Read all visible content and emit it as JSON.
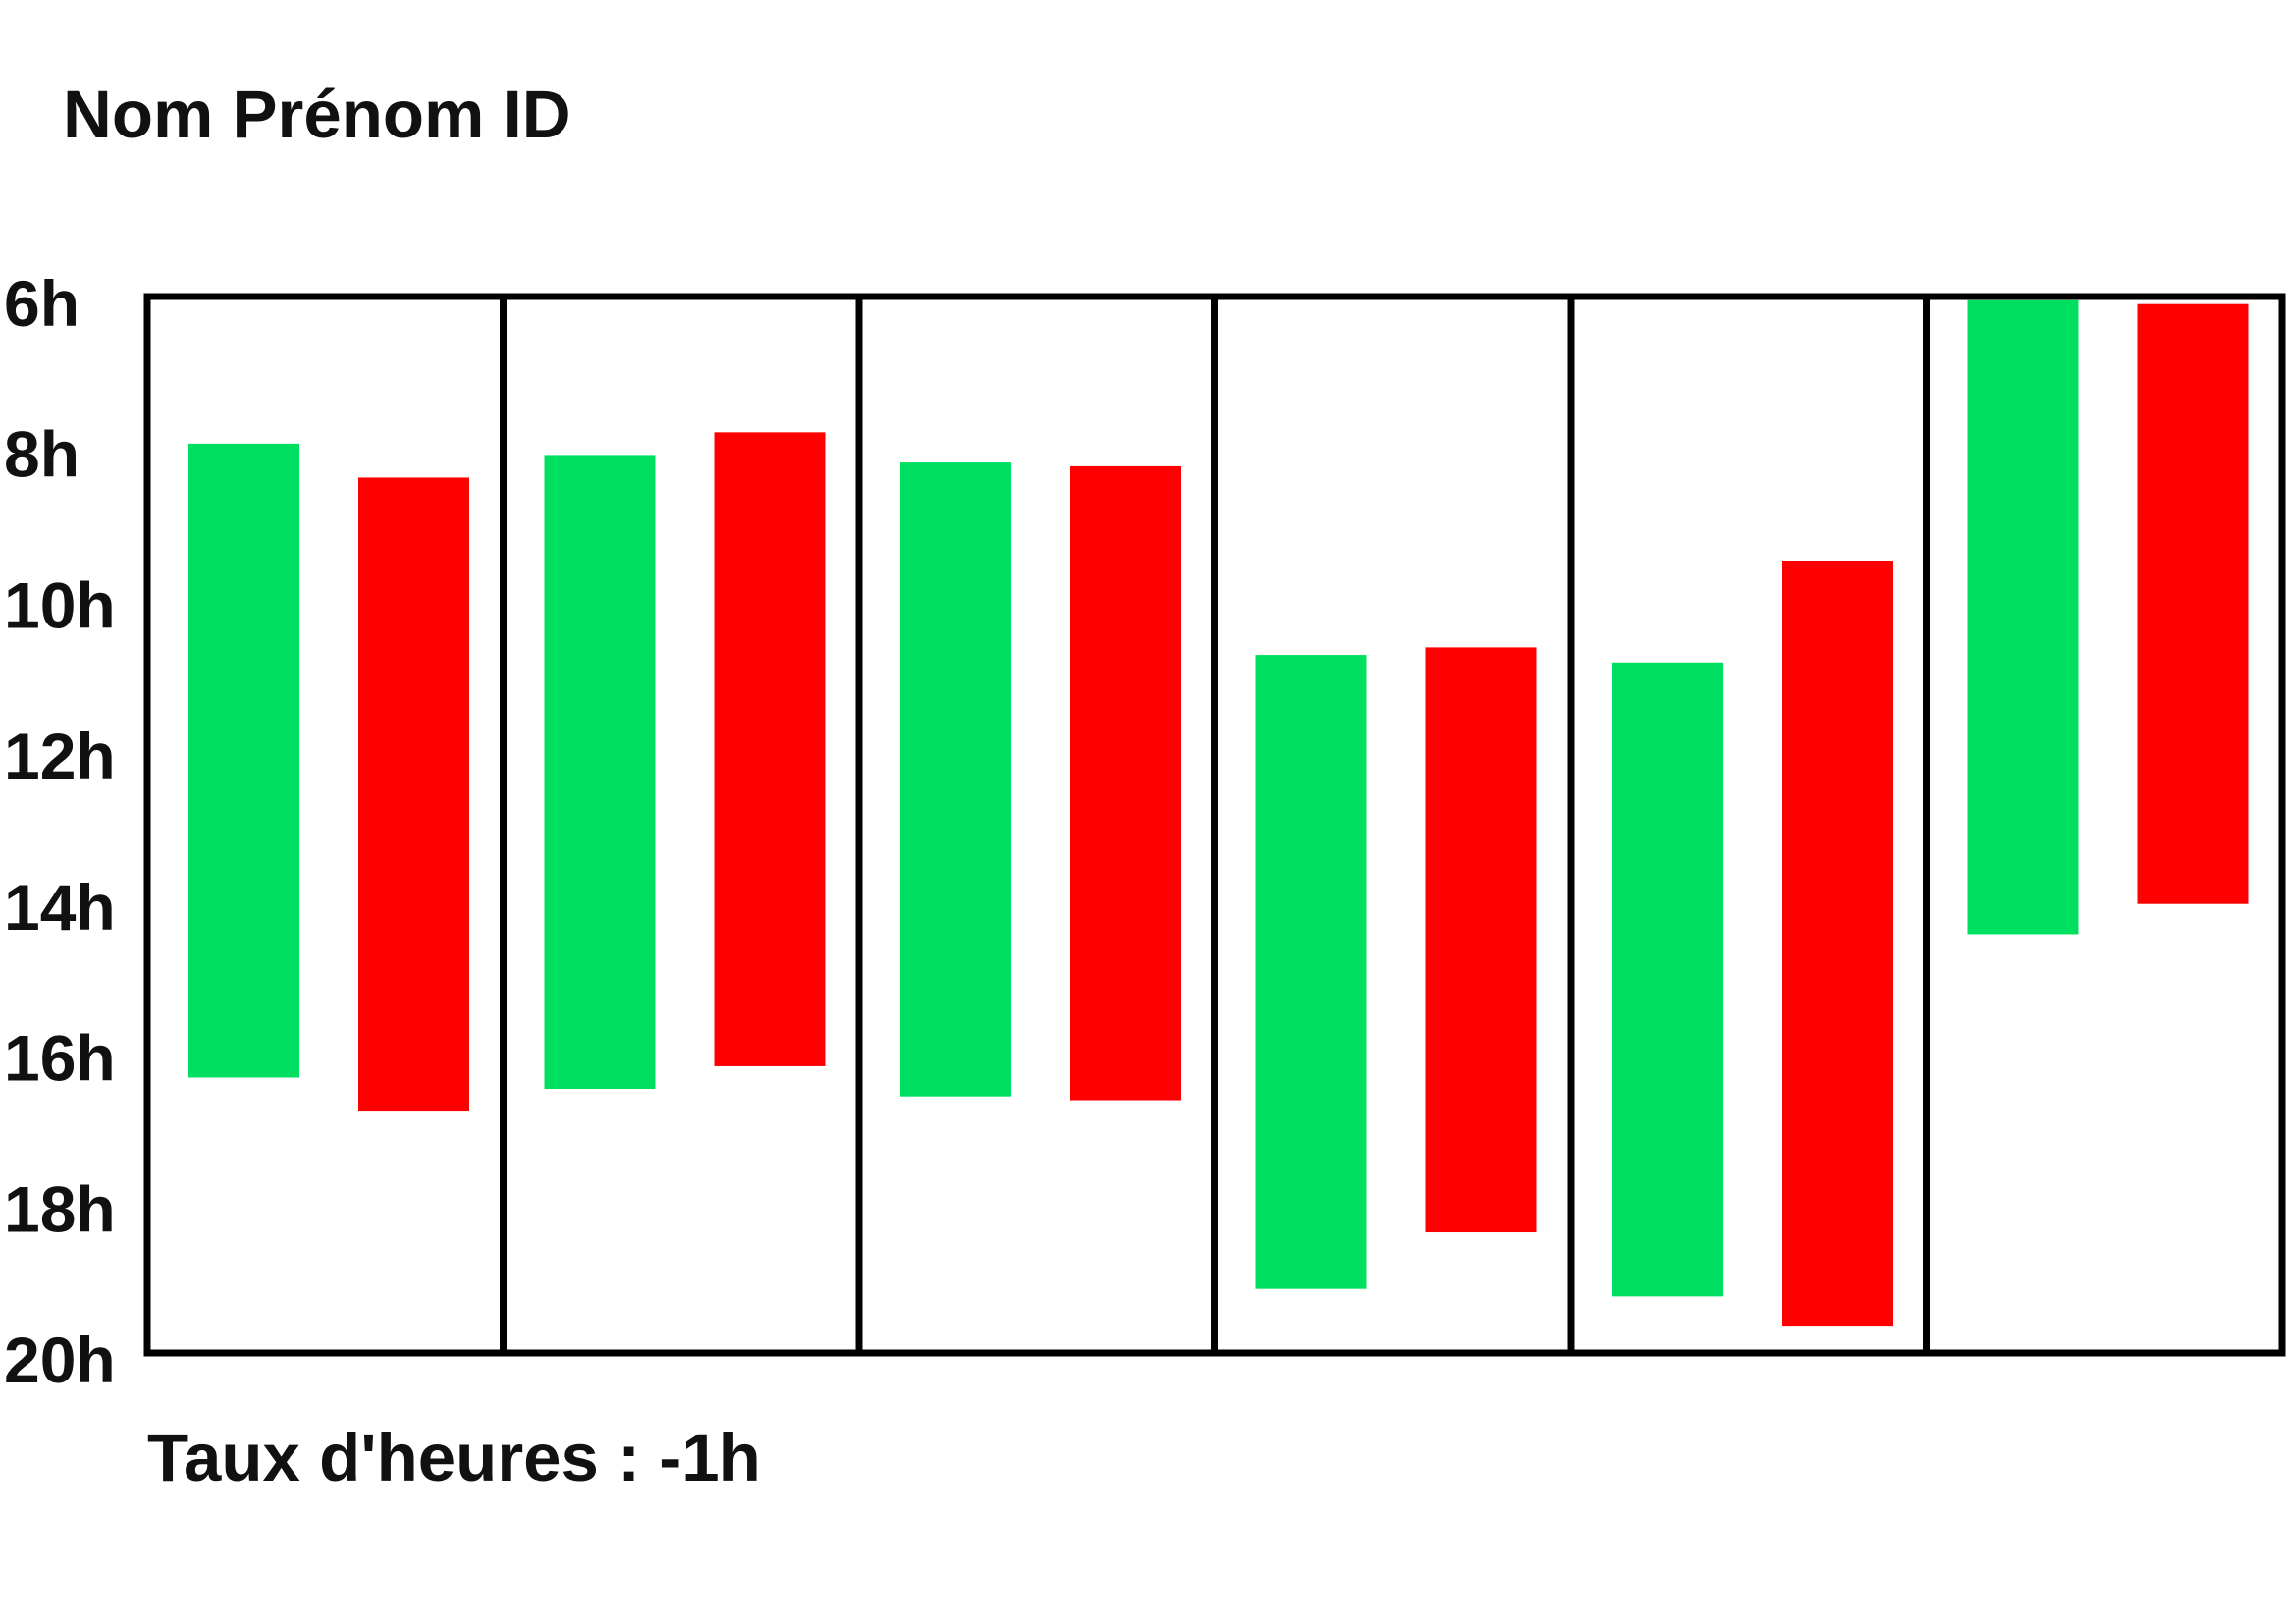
{
  "title": "Nom Prénom ID",
  "footer_text": "Taux d'heures : -1h",
  "colors": {
    "planned": "#00e060",
    "actual": "#ff0000",
    "frame": "#000000",
    "text": "#111111"
  },
  "chart_data": {
    "type": "bar",
    "orientation": "vertical-floating-ranges",
    "y_ticks": [
      "6h",
      "8h",
      "10h",
      "12h",
      "14h",
      "16h",
      "18h",
      "20h"
    ],
    "ylim": [
      6,
      20
    ],
    "y_inverted": true,
    "grid": false,
    "legend": "none",
    "title": "",
    "xlabel": "",
    "ylabel": "",
    "groups": [
      {
        "green": [
          7.95,
          16.35
        ],
        "red": [
          8.4,
          16.8
        ]
      },
      {
        "green": [
          8.1,
          16.5
        ],
        "red": [
          7.8,
          16.2
        ]
      },
      {
        "green": [
          8.2,
          16.6
        ],
        "red": [
          8.25,
          16.65
        ]
      },
      {
        "green": [
          10.75,
          19.15
        ],
        "red": [
          10.65,
          18.4
        ]
      },
      {
        "green": [
          10.85,
          19.25
        ],
        "red": [
          9.5,
          19.65
        ]
      },
      {
        "green": [
          6.05,
          14.45
        ],
        "red": [
          6.1,
          14.05
        ]
      }
    ]
  }
}
